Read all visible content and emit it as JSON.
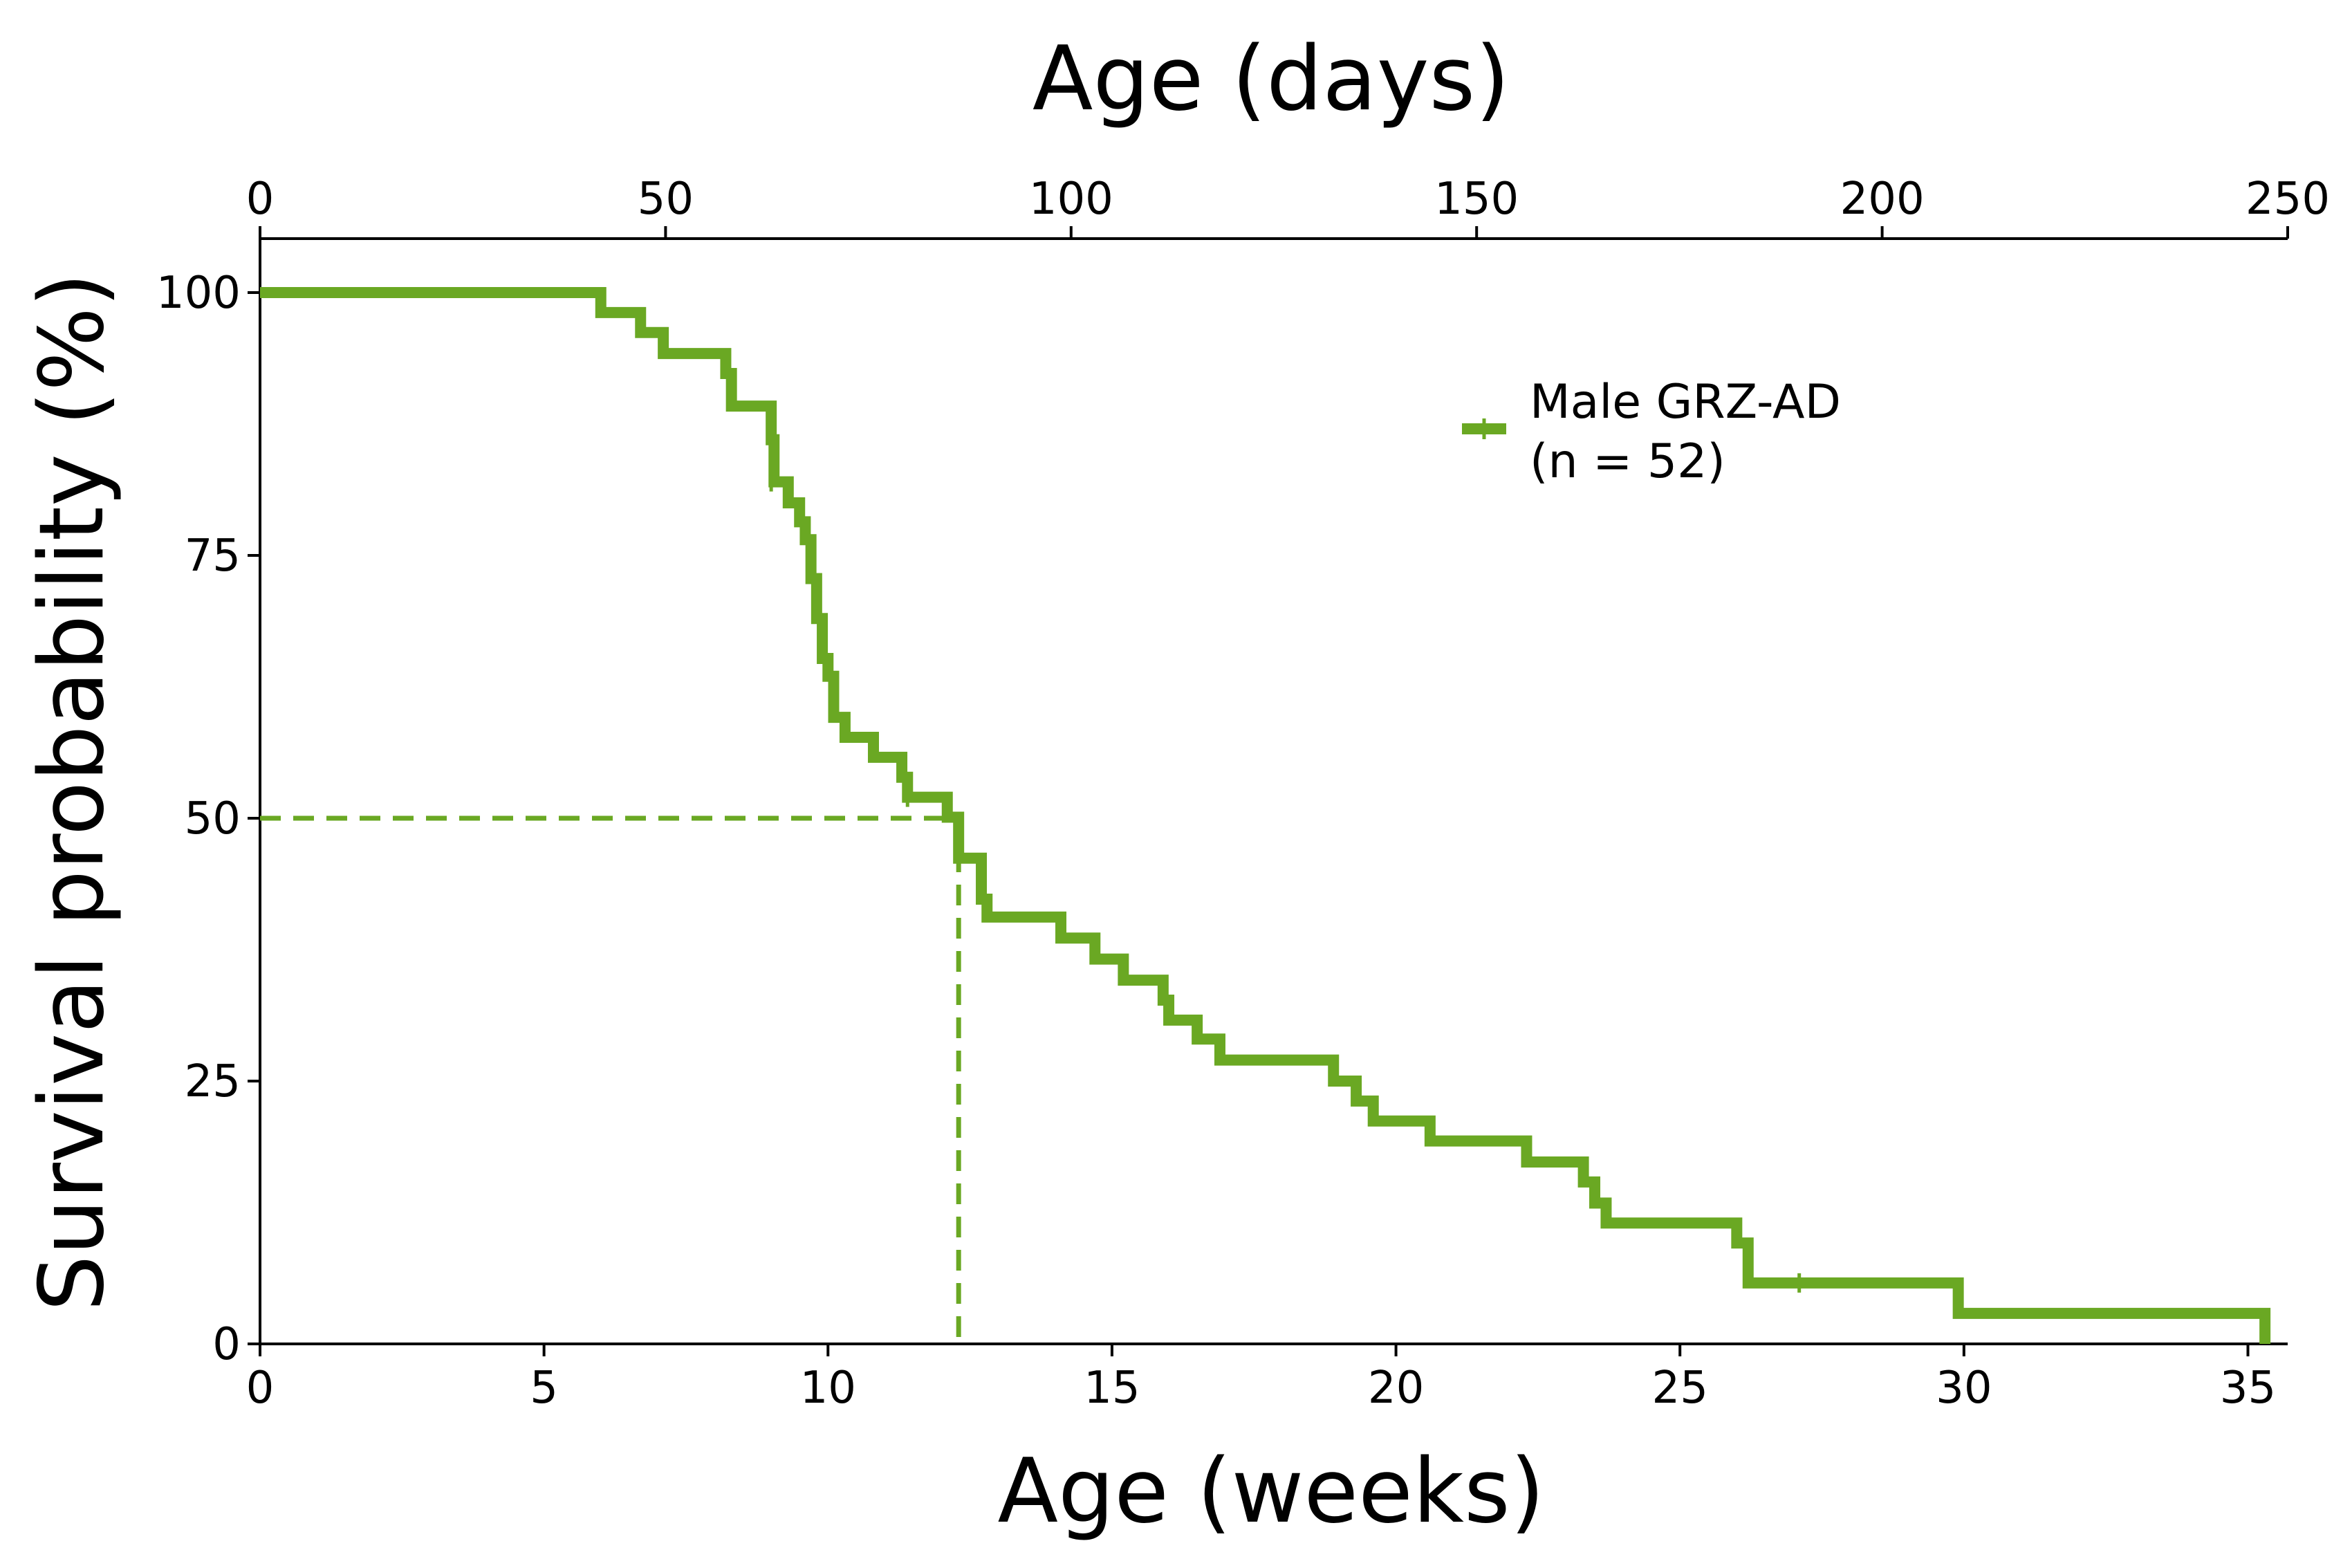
{
  "chart_data": {
    "type": "line",
    "subtype": "kaplan-meier step curve",
    "xlabel": "Age (weeks)",
    "x2label": "Age (days)",
    "ylabel": "Survival probability (%)",
    "xlim": [
      0,
      35.7
    ],
    "x2lim": [
      0,
      250
    ],
    "ylim": [
      0,
      105
    ],
    "x_ticks": [
      0,
      5,
      10,
      15,
      20,
      25,
      30,
      35
    ],
    "x2_ticks": [
      0,
      50,
      100,
      150,
      200,
      250
    ],
    "y_ticks": [
      0,
      25,
      50,
      75,
      100
    ],
    "grid": false,
    "legend_position": "upper-right",
    "series": [
      {
        "name": "Male GRZ-AD\n(n = 52)",
        "legend_lines": [
          "Male GRZ-AD",
          "(n = 52)"
        ],
        "color": "#6aa823",
        "points": [
          [
            0,
            100
          ],
          [
            6.0,
            98.1
          ],
          [
            6.7,
            96.2
          ],
          [
            7.1,
            94.2
          ],
          [
            8.2,
            92.3
          ],
          [
            8.3,
            89.2
          ],
          [
            9.0,
            86.0
          ],
          [
            9.05,
            82.0
          ],
          [
            9.3,
            80.0
          ],
          [
            9.5,
            78.2
          ],
          [
            9.6,
            76.5
          ],
          [
            9.7,
            72.8
          ],
          [
            9.8,
            69.0
          ],
          [
            9.9,
            65.2
          ],
          [
            10.0,
            63.5
          ],
          [
            10.1,
            59.6
          ],
          [
            10.3,
            57.7
          ],
          [
            10.8,
            55.8
          ],
          [
            11.3,
            53.9
          ],
          [
            11.4,
            52.0
          ],
          [
            12.1,
            50.1
          ],
          [
            12.3,
            46.2
          ],
          [
            12.7,
            42.3
          ],
          [
            12.8,
            40.6
          ],
          [
            14.1,
            38.6
          ],
          [
            14.7,
            36.6
          ],
          [
            15.2,
            34.6
          ],
          [
            15.9,
            32.7
          ],
          [
            16.0,
            30.8
          ],
          [
            16.5,
            29.0
          ],
          [
            16.9,
            27.0
          ],
          [
            18.9,
            25.0
          ],
          [
            19.3,
            23.1
          ],
          [
            19.6,
            21.2
          ],
          [
            20.6,
            19.3
          ],
          [
            22.3,
            17.3
          ],
          [
            23.3,
            15.4
          ],
          [
            23.5,
            13.4
          ],
          [
            23.7,
            11.5
          ],
          [
            26.0,
            9.6
          ],
          [
            26.2,
            5.8
          ],
          [
            29.9,
            2.9
          ],
          [
            35.3,
            0.0
          ]
        ],
        "censored": [
          [
            9.0,
            82.0
          ],
          [
            11.4,
            52.0
          ],
          [
            27.1,
            5.8
          ]
        ]
      }
    ],
    "median_survival_weeks": 12.3,
    "median_line_y": 50
  }
}
